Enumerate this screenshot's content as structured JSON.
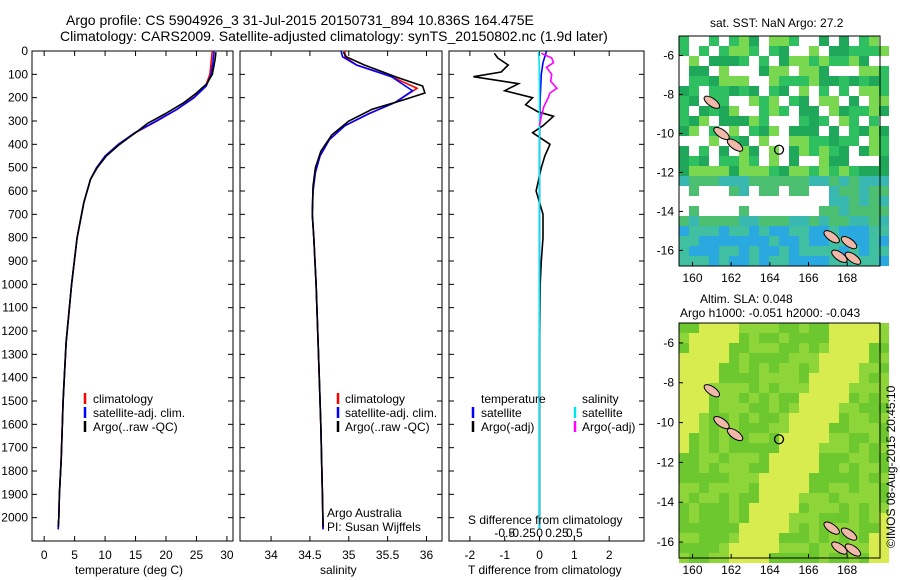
{
  "header": {
    "line1": "Argo profile: CS 5904926_3 31-Jul-2015 20150731_894 10.836S 164.475E",
    "line2": "Climatology: CARS2009. Satellite-adjusted climatology: synTS_20150802.nc (1.9d later)"
  },
  "chart_data": [
    {
      "type": "line",
      "id": "temperature",
      "xlabel": "temperature (deg C)",
      "xlim": [
        -2,
        31
      ],
      "xticks": [
        0,
        5,
        10,
        15,
        20,
        25,
        30
      ],
      "ylim": [
        2100,
        0
      ],
      "yticks": [
        0,
        100,
        200,
        300,
        400,
        500,
        600,
        700,
        800,
        900,
        1000,
        1100,
        1200,
        1300,
        1400,
        1500,
        1600,
        1700,
        1800,
        1900,
        2000
      ],
      "legend": [
        "climatology",
        "satellite-adj. clim.",
        "Argo(..raw -QC)"
      ],
      "legend_colors": [
        "#ff0000",
        "#0000ff",
        "#000000"
      ],
      "series": [
        {
          "name": "climatology",
          "color": "#ff0000",
          "x": [
            27.6,
            27.4,
            27.2,
            26.5,
            24.5,
            21.8,
            18.5,
            15.0,
            12.2,
            10.0,
            8.6,
            7.6,
            6.5,
            5.4,
            4.5,
            3.6,
            3.1,
            2.8,
            2.5,
            2.4,
            2.3
          ],
          "y": [
            0,
            50,
            100,
            150,
            200,
            250,
            300,
            350,
            400,
            450,
            500,
            550,
            650,
            800,
            1000,
            1250,
            1500,
            1750,
            1900,
            2000,
            2050
          ]
        },
        {
          "name": "satellite-adj. clim.",
          "color": "#0000ff",
          "x": [
            27.9,
            27.7,
            27.4,
            26.6,
            24.6,
            21.8,
            18.4,
            14.9,
            12.2,
            10.0,
            8.6,
            7.6,
            6.5,
            5.4,
            4.5,
            3.6,
            3.1,
            2.8,
            2.5,
            2.4,
            2.3
          ],
          "y": [
            0,
            50,
            100,
            150,
            200,
            250,
            300,
            350,
            400,
            450,
            500,
            550,
            650,
            800,
            1000,
            1250,
            1500,
            1750,
            1900,
            2000,
            2050
          ]
        },
        {
          "name": "Argo(..raw -QC)",
          "color": "#000000",
          "x": [
            28.2,
            28.1,
            27.9,
            27.6,
            26.7,
            25.0,
            23.0,
            19.8,
            17.0,
            15.0,
            12.4,
            10.2,
            8.7,
            7.6,
            6.5,
            5.4,
            4.5,
            3.6,
            3.1,
            2.8,
            2.5,
            2.4,
            2.3
          ],
          "y": [
            5,
            30,
            60,
            100,
            140,
            180,
            220,
            270,
            310,
            350,
            400,
            450,
            500,
            550,
            650,
            800,
            1000,
            1250,
            1500,
            1750,
            1900,
            2000,
            2040
          ]
        }
      ]
    },
    {
      "type": "line",
      "id": "salinity",
      "xlabel": "salinity",
      "xlim": [
        33.6,
        36.2
      ],
      "xticks": [
        34,
        34.5,
        35,
        35.5,
        36
      ],
      "ylim": [
        2100,
        0
      ],
      "legend": [
        "climatology",
        "satellite-adj. clim.",
        "Argo(..raw -QC)"
      ],
      "legend_colors": [
        "#ff0000",
        "#0000ff",
        "#000000"
      ],
      "annotations": [
        "Argo Australia",
        "PI: Susan Wijffels"
      ],
      "series": [
        {
          "name": "climatology",
          "color": "#ff0000",
          "x": [
            34.95,
            34.95,
            35.1,
            35.55,
            35.88,
            35.6,
            35.25,
            34.95,
            34.75,
            34.63,
            34.57,
            34.54,
            34.53,
            34.55,
            34.58,
            34.61,
            34.64,
            34.66,
            34.67
          ],
          "y": [
            0,
            25,
            60,
            110,
            160,
            220,
            270,
            320,
            380,
            450,
            520,
            600,
            700,
            800,
            1000,
            1300,
            1600,
            1900,
            2050
          ]
        },
        {
          "name": "satellite-adj. clim.",
          "color": "#0000ff",
          "x": [
            34.9,
            34.92,
            35.1,
            35.55,
            35.82,
            35.6,
            35.25,
            34.95,
            34.75,
            34.63,
            34.57,
            34.54,
            34.53,
            34.55,
            34.58,
            34.61,
            34.64,
            34.66,
            34.67
          ],
          "y": [
            0,
            25,
            60,
            110,
            170,
            220,
            270,
            320,
            380,
            450,
            520,
            600,
            700,
            800,
            1000,
            1300,
            1600,
            1900,
            2050
          ]
        },
        {
          "name": "Argo(..raw -QC)",
          "color": "#000000",
          "x": [
            34.93,
            34.97,
            35.2,
            35.6,
            35.95,
            35.98,
            35.7,
            35.3,
            35.0,
            34.78,
            34.64,
            34.57,
            34.54,
            34.53,
            34.55,
            34.58,
            34.61,
            34.64,
            34.66,
            34.67
          ],
          "y": [
            5,
            25,
            60,
            110,
            150,
            180,
            210,
            250,
            300,
            360,
            430,
            500,
            580,
            700,
            800,
            1000,
            1300,
            1600,
            1900,
            2040
          ]
        }
      ]
    },
    {
      "type": "line",
      "id": "differences",
      "xlabel": "T difference from climatology",
      "xlabel2": "S difference from climatology",
      "xlim": [
        -2.6,
        3
      ],
      "xticks": [
        -2,
        -1,
        0,
        1,
        2
      ],
      "xticks2": [
        -0.5,
        -0.25,
        0,
        0.25,
        0.5
      ],
      "ylim": [
        2100,
        0
      ],
      "legend_left": [
        "temperature",
        "satellite",
        "Argo(-adj)"
      ],
      "legend_left_colors": [
        "",
        "#0000ff",
        "#000000"
      ],
      "legend_right": [
        "salinity",
        "satellite",
        "Argo(-adj)"
      ],
      "legend_right_colors": [
        "",
        "#00e5ee",
        "#ff00ff"
      ],
      "series": [
        {
          "name": "T satellite",
          "color": "#0000ff",
          "x": [
            0.2,
            0.1,
            0.05,
            0.02,
            0,
            0,
            0,
            0
          ],
          "y": [
            0,
            50,
            100,
            200,
            400,
            800,
            1500,
            2050
          ]
        },
        {
          "name": "T Argo",
          "color": "#000000",
          "x": [
            -1.3,
            -1.2,
            -0.9,
            -1.1,
            -1.9,
            -0.6,
            -1.0,
            -0.2,
            -0.4,
            -0.05,
            0.4,
            0.1,
            -0.2,
            0.3,
            0.15,
            0.05,
            -0.1,
            0.1,
            0.1,
            0.05,
            0.02,
            0,
            0,
            0
          ],
          "y": [
            10,
            30,
            60,
            90,
            110,
            140,
            170,
            200,
            230,
            260,
            280,
            320,
            350,
            400,
            450,
            500,
            600,
            700,
            800,
            900,
            1000,
            1300,
            1700,
            2040
          ]
        },
        {
          "name": "S satellite",
          "color": "#00e5ee",
          "x": [
            -0.03,
            -0.01,
            0,
            0,
            0,
            0,
            0
          ],
          "y": [
            0,
            50,
            150,
            300,
            800,
            1500,
            2050
          ]
        },
        {
          "name": "S Argo",
          "color": "#ff00ff",
          "x": [
            0.05,
            0.35,
            0.4,
            0.2,
            0.35,
            0.32,
            0.5,
            0.3,
            0.25,
            0.12,
            0.05,
            0
          ],
          "y": [
            10,
            30,
            50,
            70,
            100,
            130,
            160,
            180,
            200,
            240,
            280,
            320
          ]
        }
      ]
    },
    {
      "type": "heatmap",
      "id": "sst-map",
      "title": "sat. SST: NaN Argo: 27.2",
      "xticks": [
        160,
        162,
        164,
        166,
        168
      ],
      "yticks": [
        -6,
        -8,
        -10,
        -12,
        -14,
        -16
      ],
      "xlim": [
        159.3,
        169.7
      ],
      "ylim": [
        -16.8,
        -5.0
      ],
      "marker": {
        "lon": 164.475,
        "lat": -10.836
      }
    },
    {
      "type": "heatmap",
      "id": "sla-map",
      "title": "Altim. SLA: 0.048",
      "title2": "Argo h1000: -0.051 h2000: -0.043",
      "xticks": [
        160,
        162,
        164,
        166,
        168
      ],
      "yticks": [
        -6,
        -8,
        -10,
        -12,
        -14,
        -16
      ],
      "xlim": [
        159.3,
        169.7
      ],
      "ylim": [
        -16.8,
        -5.0
      ],
      "marker": {
        "lon": 164.475,
        "lat": -10.836
      }
    }
  ],
  "footer": {
    "credit": "©IMOS 08-Aug-2015 20:45:10"
  }
}
